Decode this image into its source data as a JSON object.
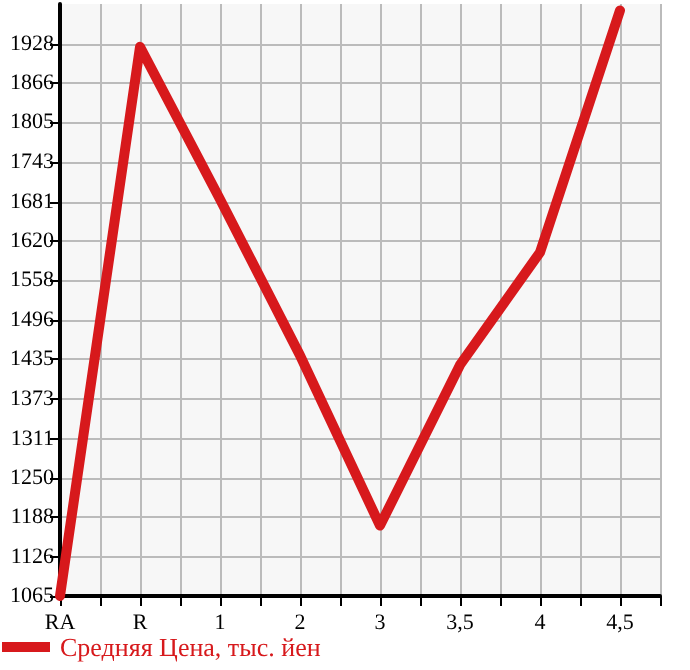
{
  "chart_data": {
    "type": "line",
    "categories": [
      "RA",
      "R",
      "1",
      "2",
      "3",
      "3,5",
      "4",
      "4,5"
    ],
    "series": [
      {
        "name": "Средняя Цена, тыс. йен",
        "color": "#d7191c",
        "values": [
          1065,
          1923,
          1685,
          1441,
          1175,
          1426,
          1602,
          1980
        ]
      }
    ],
    "ylim": [
      1065,
      1990
    ],
    "yticks": [
      1065,
      1126,
      1188,
      1250,
      1311,
      1373,
      1435,
      1496,
      1558,
      1620,
      1681,
      1743,
      1805,
      1866,
      1928
    ],
    "grid": true,
    "legend": "bottom left",
    "marker": "none",
    "line_style": "solid"
  }
}
